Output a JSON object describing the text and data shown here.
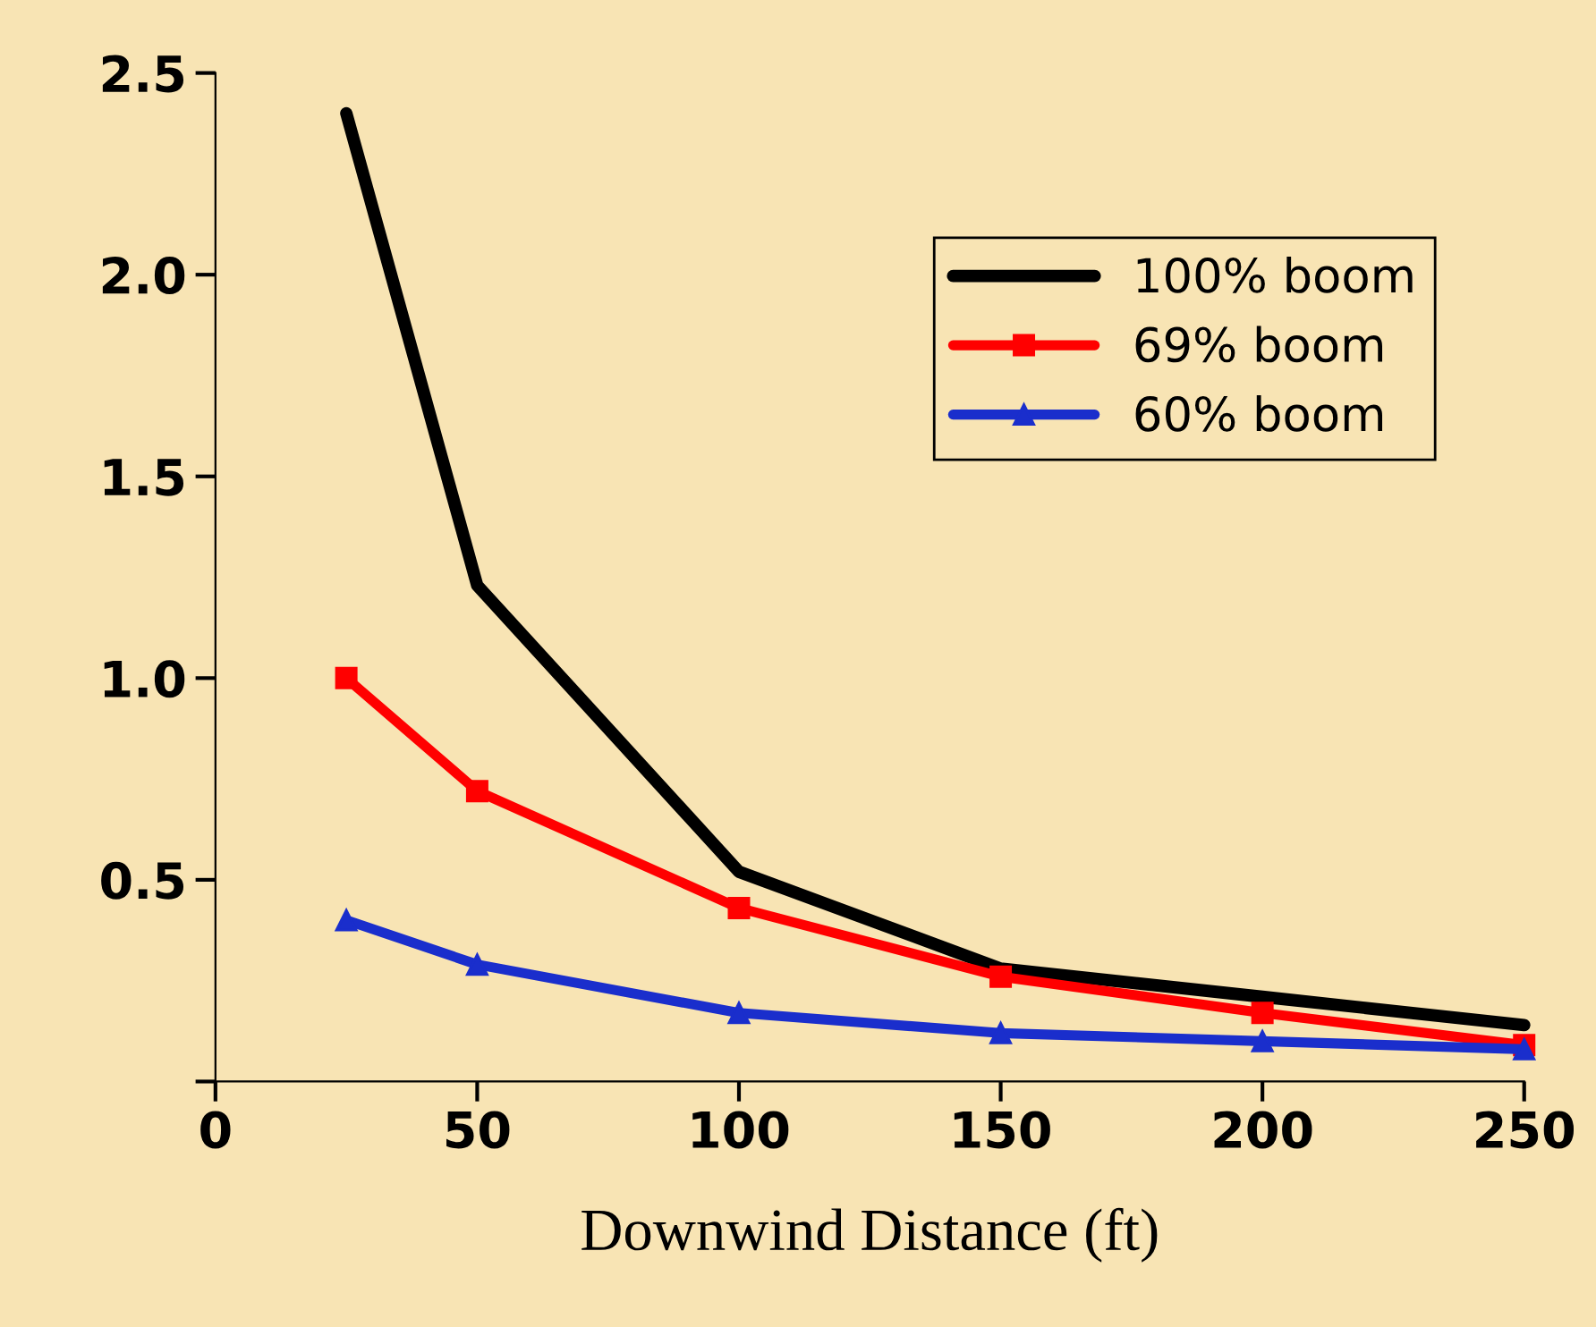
{
  "chart_data": {
    "type": "line",
    "xlabel": "Downwind Distance (ft)",
    "xlim": [
      0,
      250
    ],
    "xticks": [
      0,
      50,
      100,
      150,
      200,
      250
    ],
    "ylim": [
      0,
      2.5
    ],
    "yticks": [
      {
        "value": 0,
        "label": null
      },
      {
        "value": 0.5,
        "label": "0.5"
      },
      {
        "value": 1,
        "label": "1.0"
      },
      {
        "value": 1.5,
        "label": "1.5"
      },
      {
        "value": 2,
        "label": "2.0"
      },
      {
        "value": 2.5,
        "label": "2.5"
      }
    ],
    "grid": false,
    "legend": "top right",
    "line_style": "solid",
    "series": [
      {
        "name": "100% boom",
        "color": "#000000",
        "marker": "none",
        "x": [
          25,
          50,
          100,
          150,
          200,
          250
        ],
        "values": [
          2.4,
          1.23,
          0.52,
          0.28,
          0.21,
          0.14
        ]
      },
      {
        "name": "69% boom",
        "color": "#ff0000",
        "marker": "square",
        "x": [
          25,
          50,
          100,
          150,
          200,
          250
        ],
        "values": [
          1.0,
          0.72,
          0.43,
          0.26,
          0.17,
          0.09
        ]
      },
      {
        "name": "60% boom",
        "color": "#1a2ecc",
        "marker": "triangle",
        "x": [
          25,
          50,
          100,
          150,
          200,
          250
        ],
        "values": [
          0.4,
          0.29,
          0.17,
          0.12,
          0.1,
          0.08
        ]
      }
    ]
  }
}
